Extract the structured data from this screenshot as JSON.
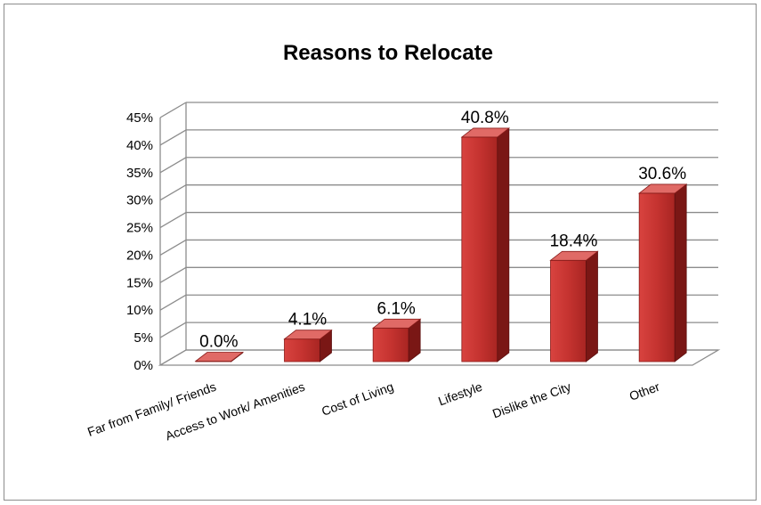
{
  "chart_data": {
    "type": "bar",
    "style": "3d-column",
    "title": "Reasons to Relocate",
    "xlabel": "",
    "ylabel": "",
    "categories": [
      "Far from Family/ Friends",
      "Access to Work/ Amenities",
      "Cost of Living",
      "Lifestyle",
      "Dislike the City",
      "Other"
    ],
    "values": [
      0.0,
      4.1,
      6.1,
      40.8,
      18.4,
      30.6
    ],
    "data_labels": [
      "0.0%",
      "4.1%",
      "6.1%",
      "40.8%",
      "18.4%",
      "30.6%"
    ],
    "ylim": [
      0,
      45
    ],
    "yticks": [
      "0%",
      "5%",
      "10%",
      "15%",
      "20%",
      "25%",
      "30%",
      "35%",
      "40%",
      "45%"
    ],
    "grid": true,
    "legend": "none",
    "colors": {
      "bar_front": "#c0302d",
      "bar_side": "#7a1715",
      "bar_top": "#e06a66",
      "grid": "#8c8c8c"
    }
  }
}
